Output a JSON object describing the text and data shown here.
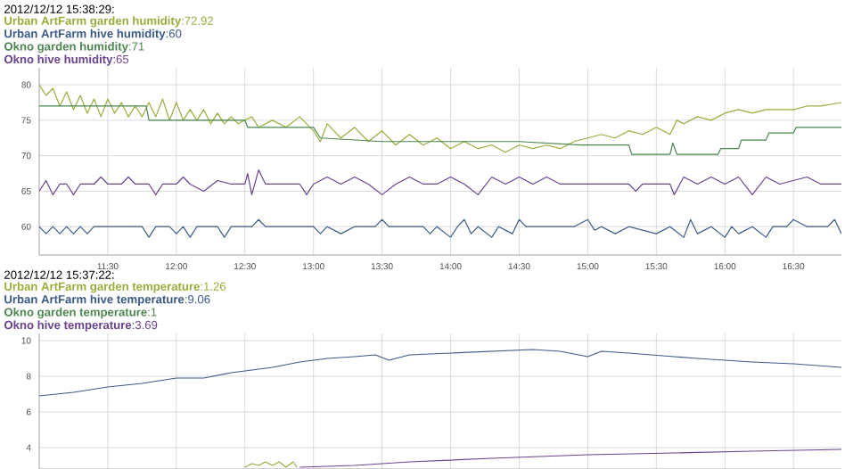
{
  "chart_data": [
    {
      "type": "line",
      "title": "2012/12/12 15:38:29:",
      "legend": "top left",
      "grid": true,
      "marker": "none",
      "xlim": [
        11.0,
        16.85
      ],
      "ylim": [
        56,
        82.4
      ],
      "xticks": [
        {
          "value": 11.5,
          "label": "11:30"
        },
        {
          "value": 12.0,
          "label": "12:00"
        },
        {
          "value": 12.5,
          "label": "12:30"
        },
        {
          "value": 13.0,
          "label": "13:00"
        },
        {
          "value": 13.5,
          "label": "13:30"
        },
        {
          "value": 14.0,
          "label": "14:00"
        },
        {
          "value": 14.5,
          "label": "14:30"
        },
        {
          "value": 15.0,
          "label": "15:00"
        },
        {
          "value": 15.5,
          "label": "15:30"
        },
        {
          "value": 16.0,
          "label": "16:00"
        },
        {
          "value": 16.5,
          "label": "16:30"
        }
      ],
      "yticks": [
        60,
        65,
        70,
        75,
        80
      ],
      "series": [
        {
          "name": "**Urban ArtFarm garden humidity**:72.92",
          "color": "#9aab3c",
          "x": [
            11.0,
            11.05,
            11.1,
            11.15,
            11.2,
            11.25,
            11.3,
            11.35,
            11.4,
            11.45,
            11.5,
            11.55,
            11.6,
            11.65,
            11.7,
            11.75,
            11.8,
            11.85,
            11.9,
            11.95,
            12.0,
            12.05,
            12.1,
            12.15,
            12.2,
            12.25,
            12.3,
            12.35,
            12.4,
            12.45,
            12.55,
            12.6,
            12.7,
            12.8,
            12.9,
            13.0,
            13.05,
            13.1,
            13.2,
            13.3,
            13.4,
            13.5,
            13.6,
            13.7,
            13.8,
            13.9,
            14.0,
            14.1,
            14.2,
            14.3,
            14.4,
            14.5,
            14.6,
            14.7,
            14.8,
            14.9,
            15.0,
            15.1,
            15.2,
            15.3,
            15.4,
            15.5,
            15.6,
            15.65,
            15.7,
            15.8,
            15.9,
            16.0,
            16.1,
            16.2,
            16.3,
            16.4,
            16.5,
            16.6,
            16.7,
            16.85
          ],
          "values": [
            80,
            78.5,
            79.5,
            77,
            79,
            76.5,
            78.5,
            76,
            78,
            75.5,
            78,
            76,
            77.5,
            75.5,
            77,
            75.5,
            77.5,
            75.5,
            78,
            75,
            77.5,
            75,
            76.5,
            75,
            76.5,
            74.5,
            76,
            74.5,
            75.5,
            74.5,
            75.5,
            74,
            75,
            74,
            75.5,
            73.5,
            72,
            74.5,
            72.5,
            74,
            72,
            73.5,
            71.5,
            73,
            71.5,
            72.5,
            71,
            72,
            71,
            71.5,
            70.5,
            71.5,
            71,
            71.5,
            71,
            72,
            72.5,
            73,
            72.5,
            73.5,
            73,
            74,
            73,
            75,
            74.5,
            75.5,
            75,
            76,
            76.5,
            76,
            76.5,
            76.5,
            76.5,
            77,
            77,
            77.5
          ]
        },
        {
          "name": "**Urban ArtFarm hive humidity**:60",
          "color": "#3c5a88",
          "x": [
            11.0,
            11.05,
            11.1,
            11.15,
            11.2,
            11.25,
            11.3,
            11.35,
            11.4,
            11.5,
            11.75,
            11.8,
            11.85,
            11.95,
            12.0,
            12.05,
            12.1,
            12.15,
            12.3,
            12.35,
            12.4,
            12.55,
            12.6,
            12.65,
            13.0,
            13.05,
            13.1,
            13.2,
            13.3,
            13.45,
            13.5,
            13.55,
            13.8,
            13.85,
            13.9,
            14.0,
            14.05,
            14.1,
            14.15,
            14.2,
            14.3,
            14.35,
            14.45,
            14.5,
            14.55,
            14.9,
            15.0,
            15.05,
            15.1,
            15.2,
            15.3,
            15.5,
            15.6,
            15.7,
            15.75,
            15.8,
            15.9,
            16.0,
            16.05,
            16.1,
            16.2,
            16.3,
            16.35,
            16.45,
            16.5,
            16.6,
            16.75,
            16.8,
            16.85
          ],
          "values": [
            60,
            59,
            60,
            59,
            60,
            59,
            60,
            59,
            60,
            60,
            60,
            58.5,
            60,
            60,
            59,
            60,
            58.5,
            60,
            60,
            58.5,
            60,
            60,
            61,
            60,
            60,
            59,
            60,
            59,
            60,
            60,
            61,
            60,
            60,
            59,
            60,
            58.5,
            60,
            61,
            59,
            60,
            58.5,
            60,
            59,
            61,
            60,
            60,
            61,
            59.5,
            60,
            59,
            60,
            59,
            60,
            58.5,
            61,
            59,
            60,
            58.5,
            60,
            59,
            60,
            58.5,
            60,
            60,
            61,
            60,
            60,
            61,
            59
          ]
        },
        {
          "name": "**Okno garden humidity**:71",
          "color": "#4d8550",
          "x": [
            11.0,
            11.78,
            11.8,
            12.5,
            12.52,
            13.0,
            13.05,
            13.5,
            14.5,
            14.95,
            15.3,
            15.32,
            15.6,
            15.62,
            15.65,
            15.95,
            15.97,
            16.1,
            16.12,
            16.3,
            16.32,
            16.5,
            16.52,
            16.85
          ],
          "values": [
            77,
            77,
            75,
            75,
            74,
            74,
            72.5,
            72,
            72,
            71.5,
            71.5,
            70.2,
            70.2,
            71.8,
            70.2,
            70.2,
            71,
            71,
            72.2,
            72.2,
            73.2,
            73.2,
            74,
            74
          ]
        },
        {
          "name": "**Okno hive humidity**:65",
          "color": "#6a4390",
          "x": [
            11.0,
            11.05,
            11.1,
            11.15,
            11.2,
            11.25,
            11.3,
            11.4,
            11.45,
            11.5,
            11.6,
            11.65,
            11.7,
            11.8,
            11.85,
            11.9,
            12.0,
            12.05,
            12.1,
            12.2,
            12.3,
            12.4,
            12.5,
            12.52,
            12.55,
            12.6,
            12.65,
            12.8,
            12.9,
            12.95,
            13.0,
            13.1,
            13.2,
            13.3,
            13.4,
            13.5,
            13.6,
            13.7,
            13.8,
            13.9,
            14.0,
            14.1,
            14.2,
            14.3,
            14.4,
            14.5,
            14.6,
            14.7,
            14.8,
            14.95,
            15.3,
            15.35,
            15.4,
            15.6,
            15.63,
            15.7,
            15.8,
            15.9,
            16.0,
            16.1,
            16.2,
            16.3,
            16.4,
            16.5,
            16.6,
            16.7,
            16.85
          ],
          "values": [
            65,
            66.5,
            64.5,
            66,
            66,
            64.5,
            66,
            66,
            67,
            66,
            66,
            67,
            66,
            66,
            64.5,
            66,
            66,
            67,
            66,
            65,
            66.5,
            66,
            66,
            67.5,
            64.5,
            68,
            66,
            66,
            66,
            64.5,
            66,
            67,
            66,
            67,
            66,
            64.5,
            66,
            67,
            66,
            66,
            67,
            66,
            64.5,
            67,
            66,
            67,
            66,
            67,
            66,
            66,
            66,
            65,
            66,
            66,
            64.5,
            67,
            66,
            67,
            66,
            67,
            64.5,
            67,
            66,
            66.5,
            67,
            66,
            66
          ]
        }
      ]
    },
    {
      "type": "line",
      "title": "2012/12/12 15:37:22:",
      "legend": "top left",
      "grid": true,
      "marker": "none",
      "tick_labels": "y",
      "xlim": [
        11.0,
        16.85
      ],
      "ylim": [
        2.8,
        10.4
      ],
      "xticks": [
        {
          "value": 11.5,
          "label": null
        },
        {
          "value": 12.0,
          "label": null
        },
        {
          "value": 12.5,
          "label": null
        },
        {
          "value": 13.0,
          "label": null
        },
        {
          "value": 13.5,
          "label": null
        },
        {
          "value": 14.0,
          "label": null
        },
        {
          "value": 14.5,
          "label": null
        },
        {
          "value": 15.0,
          "label": null
        },
        {
          "value": 15.5,
          "label": null
        },
        {
          "value": 16.0,
          "label": null
        },
        {
          "value": 16.5,
          "label": null
        }
      ],
      "yticks": [
        4,
        6,
        8,
        10
      ],
      "series": [
        {
          "name": "**Urban ArtFarm garden temperature**:1.26",
          "color": "#9aab3c",
          "x": [
            12.5,
            12.55,
            12.6,
            12.65,
            12.7,
            12.75,
            12.8,
            12.85,
            12.88
          ],
          "values": [
            2.9,
            3.1,
            3.0,
            3.2,
            3.0,
            3.2,
            2.9,
            3.2,
            2.9
          ]
        },
        {
          "name": "**Urban ArtFarm hive temperature**:9.06",
          "color": "#3c5a88",
          "x": [
            11.0,
            11.25,
            11.5,
            11.75,
            12.0,
            12.2,
            12.4,
            12.7,
            12.9,
            13.1,
            13.3,
            13.45,
            13.55,
            13.7,
            14.0,
            14.3,
            14.6,
            14.8,
            15.0,
            15.1,
            15.3,
            15.63,
            15.8,
            16.2,
            16.5,
            16.85
          ],
          "values": [
            6.9,
            7.1,
            7.4,
            7.6,
            7.9,
            7.9,
            8.2,
            8.5,
            8.8,
            9.0,
            9.1,
            9.2,
            8.9,
            9.2,
            9.3,
            9.4,
            9.5,
            9.4,
            9.1,
            9.4,
            9.3,
            9.1,
            9.0,
            8.8,
            8.7,
            8.5
          ]
        },
        {
          "name": "**Okno garden temperature**:1",
          "color": "#4d8550"
        },
        {
          "name": "**Okno hive temperature**:3.69",
          "color": "#6a4390",
          "x": [
            12.9,
            13.3,
            13.7,
            14.3,
            15.0,
            15.63,
            16.2,
            16.85
          ],
          "values": [
            2.9,
            3.0,
            3.2,
            3.4,
            3.6,
            3.7,
            3.8,
            3.9
          ]
        }
      ]
    }
  ]
}
